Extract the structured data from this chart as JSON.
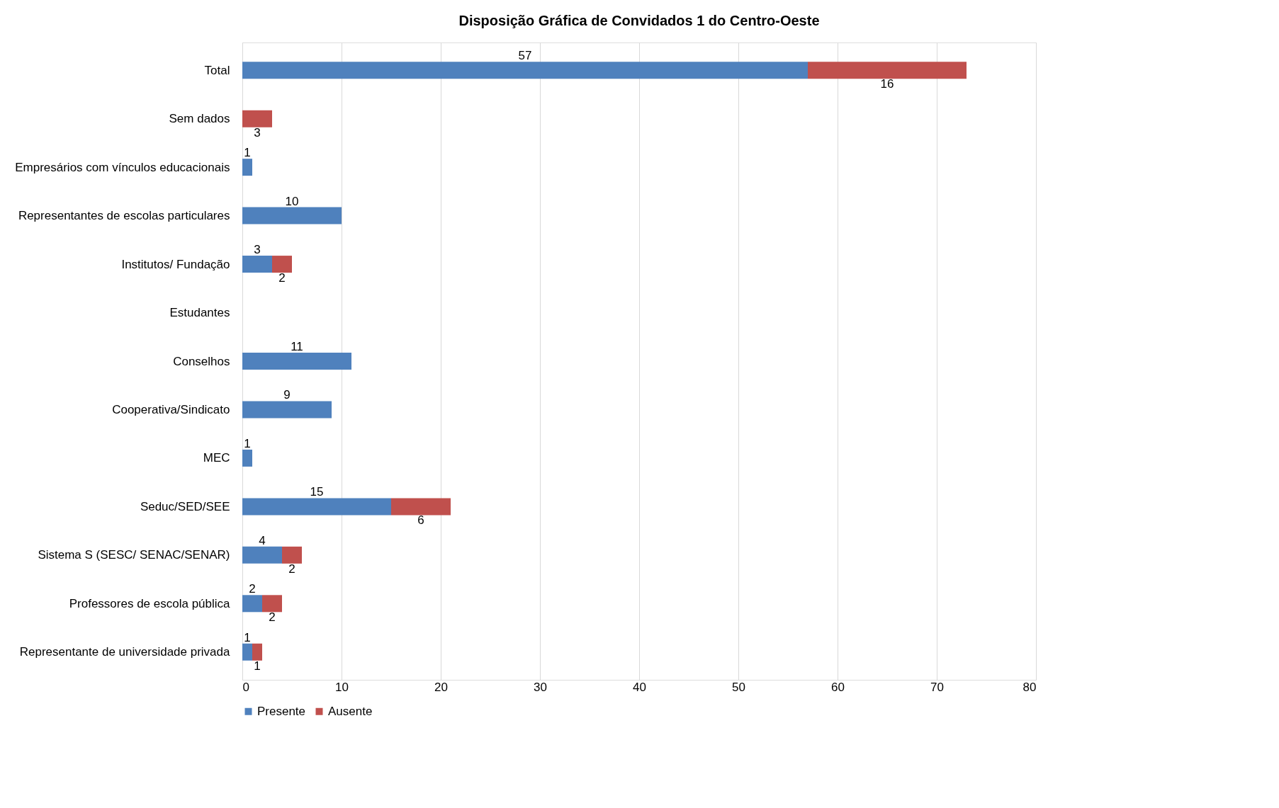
{
  "chart_data": {
    "type": "bar",
    "orientation": "horizontal",
    "stacked": true,
    "title": "Disposição Gráfica de Convidados 1 do Centro-Oeste",
    "categories": [
      "Total",
      "Sem dados",
      "Empresários com vínculos educacionais",
      "Representantes de escolas particulares",
      "Institutos/ Fundação",
      "Estudantes",
      "Conselhos",
      "Cooperativa/Sindicato",
      "MEC",
      "Seduc/SED/SEE",
      "Sistema S (SESC/ SENAC/SENAR)",
      "Professores de escola pública",
      "Representante de universidade privada"
    ],
    "series": [
      {
        "name": "Presente",
        "color": "#4f81bd",
        "values": [
          57,
          null,
          1,
          10,
          3,
          null,
          11,
          9,
          1,
          15,
          4,
          2,
          1
        ]
      },
      {
        "name": "Ausente",
        "color": "#c0504d",
        "values": [
          16,
          3,
          null,
          null,
          2,
          null,
          null,
          null,
          null,
          6,
          2,
          2,
          1
        ]
      }
    ],
    "xlim": [
      0,
      80
    ],
    "xticks": [
      0,
      10,
      20,
      30,
      40,
      50,
      60,
      70,
      80
    ],
    "grid": "x",
    "legend": "bottom",
    "data_labels": true
  }
}
